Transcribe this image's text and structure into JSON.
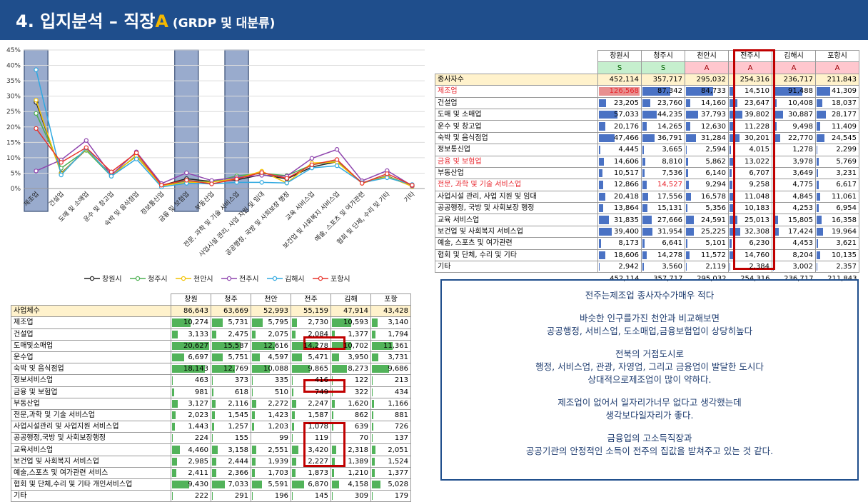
{
  "header": {
    "title_prefix": "4. 입지분석 – 직장",
    "title_accent": "A",
    "title_sub": " (GRDP 및 대분류)"
  },
  "colors": {
    "header_bg": "#1f4e8c",
    "accent": "#f5b800",
    "highlight": "#c00000"
  },
  "chart_data": {
    "type": "line",
    "categories": [
      "제조업",
      "건설업",
      "도매 및 소매업",
      "운수 및 창고업",
      "숙박 및 음식점업",
      "정보통신업",
      "금융 및 보험업",
      "부동산업",
      "전문, 과학 및 기술 서비스업",
      "사업시설 관리, 사업 지원 및 임대",
      "공공행정, 국방 및 사회보장 행정",
      "교육 서비스업",
      "보건업 및 사회복지 서비스업",
      "예술, 스포츠 및 여가관련",
      "협회 및 단체, 수리 및 기타",
      "기타"
    ],
    "yticks": [
      "0%",
      "5%",
      "10%",
      "15%",
      "20%",
      "25%",
      "30%",
      "35%",
      "40%",
      "45%"
    ],
    "ylim": [
      0,
      45
    ],
    "highlight_categories": [
      0,
      6,
      8
    ],
    "series": [
      {
        "name": "창원시",
        "color": "#222222",
        "values": [
          28,
          5,
          12.6,
          4.5,
          10.5,
          1,
          3.2,
          2.3,
          2.8,
          4.5,
          3.1,
          7,
          8.7,
          1.8,
          4.1,
          0.7
        ]
      },
      {
        "name": "청주시",
        "color": "#4caf50",
        "values": [
          24.4,
          6.6,
          12.4,
          4,
          10.8,
          1,
          2.5,
          2.1,
          4.1,
          4.9,
          4.2,
          7.7,
          8.9,
          1.9,
          4,
          1
        ]
      },
      {
        "name": "천안시",
        "color": "#f2c200",
        "values": [
          28.7,
          4.8,
          12.8,
          4.3,
          10.6,
          0.9,
          2,
          2.1,
          3.2,
          5.6,
          1.8,
          8.3,
          8.6,
          1.7,
          3.9,
          0.7
        ]
      },
      {
        "name": "전주시",
        "color": "#8e44ad",
        "values": [
          5.7,
          9.3,
          15.6,
          4.4,
          11.9,
          1.6,
          5.1,
          2.6,
          3.6,
          4.3,
          4,
          9.8,
          12.7,
          2.5,
          5.8,
          0.9
        ]
      },
      {
        "name": "김해시",
        "color": "#2fa8e0",
        "values": [
          38.6,
          4.4,
          13.1,
          4,
          9.6,
          0.5,
          1.7,
          1.5,
          2,
          2,
          1.8,
          6.7,
          7.4,
          1.9,
          3.5,
          1.3
        ]
      },
      {
        "name": "포항시",
        "color": "#e8342c",
        "values": [
          19.5,
          8.5,
          13.3,
          5.4,
          11.6,
          1.1,
          2.7,
          1.5,
          3.1,
          5.2,
          3.3,
          7.7,
          9.4,
          1.7,
          4.8,
          1.1
        ]
      }
    ]
  },
  "table1": {
    "headers": [
      "창원시",
      "청주시",
      "천안시",
      "전주시",
      "김해시",
      "포항시"
    ],
    "grades": [
      "S",
      "S",
      "A",
      "A",
      "A",
      "A"
    ],
    "rows": [
      {
        "label": "종사자수",
        "values": [
          "452,114",
          "357,717",
          "295,032",
          "254,316",
          "236,717",
          "211,843"
        ],
        "bars": [
          0,
          0,
          0,
          0,
          0,
          0
        ],
        "total": true
      },
      {
        "label": "제조업",
        "values": [
          "126,568",
          "87,342",
          "84,733",
          "14,510",
          "91,488",
          "41,309"
        ],
        "bars": [
          1,
          0.69,
          0.67,
          0.11,
          0.72,
          0.33
        ],
        "red": true
      },
      {
        "label": "건설업",
        "values": [
          "23,205",
          "23,760",
          "14,160",
          "23,647",
          "10,408",
          "18,037"
        ],
        "bars": [
          0.18,
          0.19,
          0.11,
          0.19,
          0.08,
          0.14
        ]
      },
      {
        "label": "도매 및 소매업",
        "values": [
          "57,033",
          "44,235",
          "37,793",
          "39,802",
          "30,887",
          "28,177"
        ],
        "bars": [
          0.45,
          0.35,
          0.3,
          0.31,
          0.24,
          0.22
        ]
      },
      {
        "label": "운수 및 창고업",
        "values": [
          "20,176",
          "14,265",
          "12,630",
          "11,228",
          "9,498",
          "11,409"
        ],
        "bars": [
          0.16,
          0.11,
          0.1,
          0.09,
          0.08,
          0.09
        ]
      },
      {
        "label": "숙박 및 음식점업",
        "values": [
          "47,466",
          "36,791",
          "31,284",
          "30,201",
          "22,770",
          "24,545"
        ],
        "bars": [
          0.38,
          0.29,
          0.25,
          0.24,
          0.18,
          0.19
        ]
      },
      {
        "label": "정보통신업",
        "values": [
          "4,445",
          "3,665",
          "2,594",
          "4,015",
          "1,278",
          "2,299"
        ],
        "bars": [
          0.04,
          0.03,
          0.02,
          0.03,
          0.01,
          0.02
        ]
      },
      {
        "label": "금융 및 보험업",
        "values": [
          "14,606",
          "8,810",
          "5,862",
          "13,022",
          "3,978",
          "5,769"
        ],
        "bars": [
          0.12,
          0.07,
          0.05,
          0.1,
          0.03,
          0.05
        ],
        "red": true
      },
      {
        "label": "부동산업",
        "values": [
          "10,517",
          "7,536",
          "6,140",
          "6,707",
          "3,649",
          "3,231"
        ],
        "bars": [
          0.08,
          0.06,
          0.05,
          0.05,
          0.03,
          0.03
        ]
      },
      {
        "label": "전문, 과학 및 기술 서비스업",
        "values": [
          "12,866",
          "14,527",
          "9,294",
          "9,258",
          "4,775",
          "6,617"
        ],
        "bars": [
          0.1,
          0.11,
          0.07,
          0.07,
          0.04,
          0.05
        ],
        "red": true,
        "redcell": 1
      },
      {
        "label": "사업시설 관리, 사업 지원 및 임대",
        "values": [
          "20,418",
          "17,556",
          "16,578",
          "11,048",
          "4,845",
          "11,061"
        ],
        "bars": [
          0.16,
          0.14,
          0.13,
          0.09,
          0.04,
          0.09
        ]
      },
      {
        "label": "공공행정, 국방 및 사회보장 행정",
        "values": [
          "13,864",
          "15,131",
          "5,356",
          "10,183",
          "4,253",
          "6,954"
        ],
        "bars": [
          0.11,
          0.12,
          0.04,
          0.08,
          0.03,
          0.05
        ]
      },
      {
        "label": "교육 서비스업",
        "values": [
          "31,835",
          "27,666",
          "24,591",
          "25,013",
          "15,805",
          "16,358"
        ],
        "bars": [
          0.25,
          0.22,
          0.19,
          0.2,
          0.12,
          0.13
        ]
      },
      {
        "label": "보건업 및 사회복지 서비스업",
        "values": [
          "39,400",
          "31,954",
          "25,225",
          "32,308",
          "17,424",
          "19,964"
        ],
        "bars": [
          0.31,
          0.25,
          0.2,
          0.26,
          0.14,
          0.16
        ]
      },
      {
        "label": "예술, 스포츠 및 여가관련",
        "values": [
          "8,173",
          "6,641",
          "5,101",
          "6,230",
          "4,453",
          "3,621"
        ],
        "bars": [
          0.06,
          0.05,
          0.04,
          0.05,
          0.04,
          0.03
        ]
      },
      {
        "label": "협회 및 단체, 수리 및 기타",
        "values": [
          "18,606",
          "14,278",
          "11,572",
          "14,760",
          "8,204",
          "10,135"
        ],
        "bars": [
          0.15,
          0.11,
          0.09,
          0.12,
          0.06,
          0.08
        ]
      },
      {
        "label": "기타",
        "values": [
          "2,942",
          "3,560",
          "2,119",
          "2,384",
          "3,002",
          "2,357"
        ],
        "bars": [
          0.02,
          0.03,
          0.02,
          0.02,
          0.02,
          0.02
        ]
      }
    ],
    "footer": [
      "452,114",
      "357,717",
      "295,032",
      "254,316",
      "236,717",
      "211,843"
    ]
  },
  "table2": {
    "headers": [
      "창원",
      "청주",
      "천안",
      "전주",
      "김해",
      "포항"
    ],
    "rows": [
      {
        "label": "사업체수",
        "values": [
          "86,643",
          "63,669",
          "52,993",
          "55,159",
          "47,914",
          "43,428"
        ],
        "bars": [
          0,
          0,
          0,
          0,
          0,
          0
        ],
        "total": true
      },
      {
        "label": "제조업",
        "values": [
          "10,274",
          "5,731",
          "5,795",
          "2,730",
          "10,593",
          "3,140"
        ],
        "bars": [
          0.5,
          0.28,
          0.28,
          0.13,
          0.51,
          0.15
        ]
      },
      {
        "label": "건설업",
        "values": [
          "3,133",
          "2,475",
          "2,075",
          "2,084",
          "1,377",
          "1,794"
        ],
        "bars": [
          0.15,
          0.12,
          0.1,
          0.1,
          0.07,
          0.09
        ]
      },
      {
        "label": "도매및소매업",
        "values": [
          "20,627",
          "15,587",
          "12,616",
          "14,278",
          "10,702",
          "11,361"
        ],
        "bars": [
          1,
          0.76,
          0.61,
          0.69,
          0.52,
          0.55
        ]
      },
      {
        "label": "운수업",
        "values": [
          "6,697",
          "5,751",
          "4,597",
          "5,471",
          "3,950",
          "3,731"
        ],
        "bars": [
          0.32,
          0.28,
          0.22,
          0.27,
          0.19,
          0.18
        ]
      },
      {
        "label": "숙박 및 음식점업",
        "values": [
          "18,143",
          "12,769",
          "10,088",
          "9,865",
          "8,273",
          "9,686"
        ],
        "bars": [
          0.88,
          0.62,
          0.49,
          0.48,
          0.4,
          0.47
        ]
      },
      {
        "label": "정보서비스업",
        "values": [
          "463",
          "373",
          "335",
          "416",
          "122",
          "213"
        ],
        "bars": [
          0.02,
          0.02,
          0.02,
          0.02,
          0.01,
          0.01
        ]
      },
      {
        "label": "금융 및 보험업",
        "values": [
          "981",
          "618",
          "510",
          "749",
          "322",
          "434"
        ],
        "bars": [
          0.05,
          0.03,
          0.02,
          0.04,
          0.02,
          0.02
        ]
      },
      {
        "label": "부동산업",
        "values": [
          "3,127",
          "2,116",
          "2,272",
          "2,247",
          "1,620",
          "1,166"
        ],
        "bars": [
          0.15,
          0.1,
          0.11,
          0.11,
          0.08,
          0.06
        ]
      },
      {
        "label": "전문,과학 및 기술 서비스업",
        "values": [
          "2,023",
          "1,545",
          "1,423",
          "1,587",
          "862",
          "881"
        ],
        "bars": [
          0.1,
          0.07,
          0.07,
          0.08,
          0.04,
          0.04
        ]
      },
      {
        "label": "사업시설관리 및 사업지원 서비스업",
        "values": [
          "1,443",
          "1,257",
          "1,203",
          "1,078",
          "639",
          "726"
        ],
        "bars": [
          0.07,
          0.06,
          0.06,
          0.05,
          0.03,
          0.04
        ]
      },
      {
        "label": "공공행정,국방 및 사회보장행정",
        "values": [
          "224",
          "155",
          "99",
          "119",
          "70",
          "137"
        ],
        "bars": [
          0.01,
          0.01,
          0,
          0.01,
          0,
          0.01
        ]
      },
      {
        "label": "교육서비스업",
        "values": [
          "4,460",
          "3,158",
          "2,551",
          "3,420",
          "2,318",
          "2,051"
        ],
        "bars": [
          0.22,
          0.15,
          0.12,
          0.17,
          0.11,
          0.1
        ]
      },
      {
        "label": "보건업 및 사회복지 서비스업",
        "values": [
          "2,985",
          "2,444",
          "1,939",
          "2,227",
          "1,389",
          "1,524"
        ],
        "bars": [
          0.14,
          0.12,
          0.09,
          0.11,
          0.07,
          0.07
        ]
      },
      {
        "label": "예술,스포츠 및 여가관련 서비스",
        "values": [
          "2,411",
          "2,366",
          "1,703",
          "1,873",
          "1,210",
          "1,377"
        ],
        "bars": [
          0.12,
          0.11,
          0.08,
          0.09,
          0.06,
          0.07
        ]
      },
      {
        "label": "협회 및 단체,수리 및 기타 개인서비스업",
        "values": [
          "9,430",
          "7,033",
          "5,591",
          "6,870",
          "4,158",
          "5,028"
        ],
        "bars": [
          0.46,
          0.34,
          0.27,
          0.33,
          0.2,
          0.24
        ]
      },
      {
        "label": "기타",
        "values": [
          "222",
          "291",
          "196",
          "145",
          "309",
          "179"
        ],
        "bars": [
          0.01,
          0.01,
          0.01,
          0.01,
          0.01,
          0.01
        ]
      }
    ]
  },
  "notes": [
    "전주는제조업 종사자수가매우 적다",
    "",
    "바슷한 인구를가진 천안과 비교해보면",
    "공공행정, 서비스업, 도소매업,금융보험업이 상당히높다",
    "",
    "전북의 거점도시로",
    "행정, 서비스업, 관광, 자영업, 그리고 금융업이 발달한 도시다",
    "상대적으로제조업이 많이 약하다.",
    "",
    "제조업이 없어서 일자리가너무 없다고 생각했는데",
    "생각보다일자리가 좋다.",
    "",
    "금융업의 고소득직장과",
    "공공기관의 안정적인 소득이 전주의 집값을 받쳐주고 있는 것 같다."
  ]
}
